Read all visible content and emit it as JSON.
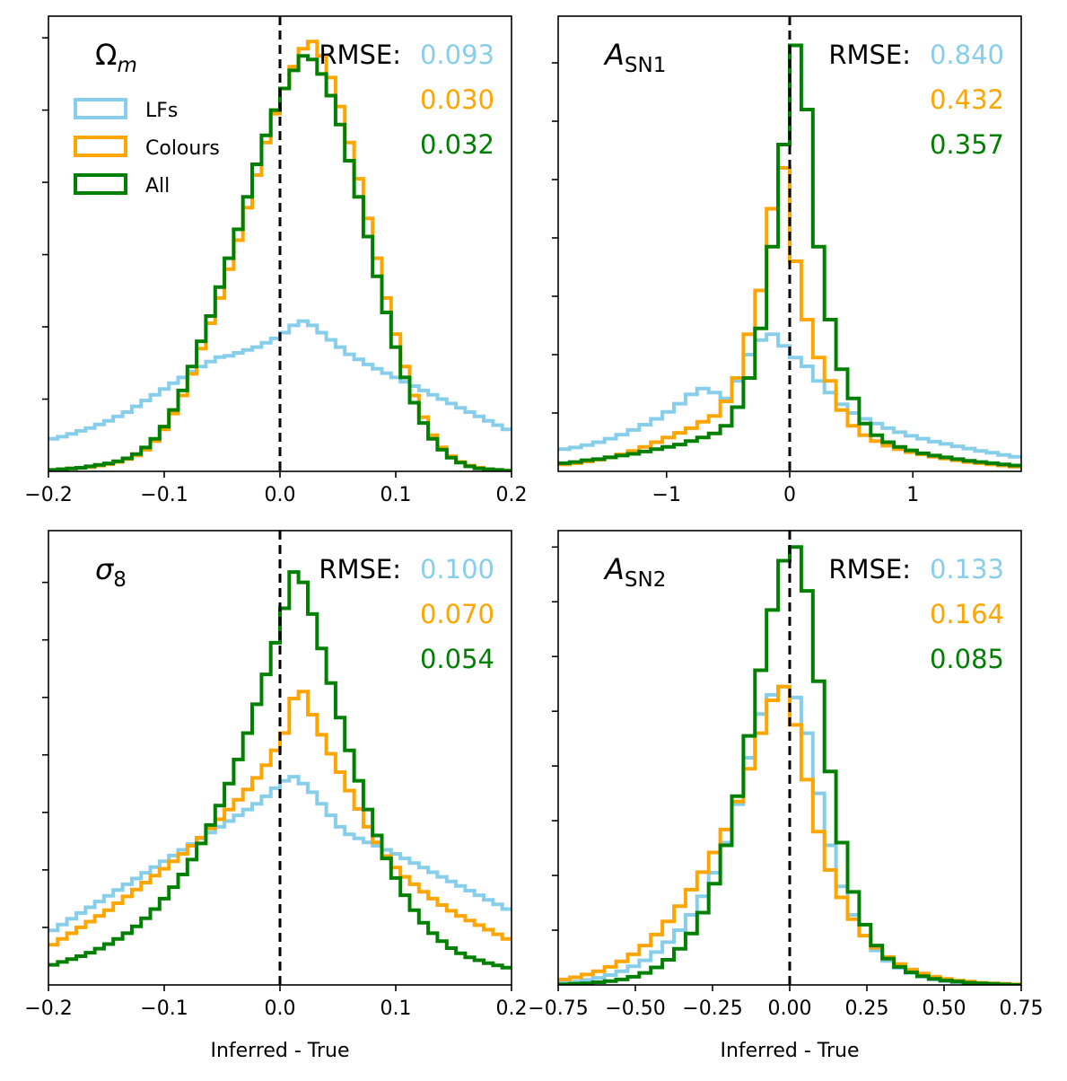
{
  "xlabel": "Inferred - True",
  "colors": {
    "lfs": "#87ceeb",
    "colours": "#ffa500",
    "all": "#008000",
    "truth_line": "#000000"
  },
  "legend": [
    {
      "name": "LFs",
      "color_key": "lfs"
    },
    {
      "name": "Colours",
      "color_key": "colours"
    },
    {
      "name": "All",
      "color_key": "all"
    }
  ],
  "chart_data": [
    {
      "type": "histogram-step",
      "param": {
        "main": "Ω",
        "italic_sub": "m",
        "roman_sub": ""
      },
      "rmse_label": "RMSE:",
      "rmse": [
        "0.093",
        "0.030",
        "0.032"
      ],
      "xlim": [
        -0.2,
        0.2
      ],
      "ylim": [
        0,
        6.3
      ],
      "xticks": [
        -0.2,
        -0.1,
        0.0,
        0.1,
        0.2
      ],
      "xticklabels": [
        "−0.2",
        "−0.1",
        "0.0",
        "0.1",
        "0.2"
      ],
      "yticks": [
        1,
        2,
        3,
        4,
        5,
        6
      ],
      "truth": 0.0,
      "series": [
        {
          "name": "LFs",
          "color_key": "lfs",
          "bin_start": -0.2,
          "bin_width": 0.008,
          "values": [
            0.45,
            0.48,
            0.52,
            0.56,
            0.6,
            0.65,
            0.7,
            0.76,
            0.82,
            0.9,
            0.98,
            1.06,
            1.14,
            1.22,
            1.3,
            1.38,
            1.45,
            1.52,
            1.58,
            1.6,
            1.64,
            1.68,
            1.72,
            1.78,
            1.84,
            1.92,
            2.02,
            2.08,
            2.02,
            1.92,
            1.82,
            1.72,
            1.62,
            1.55,
            1.48,
            1.42,
            1.36,
            1.3,
            1.24,
            1.18,
            1.12,
            1.06,
            1.0,
            0.94,
            0.88,
            0.82,
            0.76,
            0.7,
            0.64,
            0.58
          ]
        },
        {
          "name": "Colours",
          "color_key": "colours",
          "bin_start": -0.2,
          "bin_width": 0.008,
          "values": [
            0.02,
            0.03,
            0.04,
            0.05,
            0.06,
            0.08,
            0.1,
            0.13,
            0.17,
            0.22,
            0.3,
            0.42,
            0.58,
            0.8,
            1.05,
            1.35,
            1.7,
            2.05,
            2.4,
            2.8,
            3.2,
            3.65,
            4.1,
            4.55,
            4.95,
            5.3,
            5.6,
            5.85,
            5.95,
            5.75,
            5.45,
            5.05,
            4.55,
            4.05,
            3.5,
            2.95,
            2.4,
            1.9,
            1.45,
            1.05,
            0.75,
            0.5,
            0.33,
            0.21,
            0.13,
            0.08,
            0.05,
            0.03,
            0.02,
            0.01
          ]
        },
        {
          "name": "All",
          "color_key": "all",
          "bin_start": -0.2,
          "bin_width": 0.008,
          "values": [
            0.02,
            0.03,
            0.04,
            0.05,
            0.07,
            0.09,
            0.11,
            0.14,
            0.18,
            0.24,
            0.33,
            0.45,
            0.62,
            0.85,
            1.12,
            1.45,
            1.8,
            2.15,
            2.55,
            2.95,
            3.35,
            3.8,
            4.25,
            4.65,
            5.0,
            5.3,
            5.55,
            5.75,
            5.7,
            5.5,
            5.2,
            4.8,
            4.3,
            3.8,
            3.25,
            2.7,
            2.2,
            1.72,
            1.3,
            0.95,
            0.67,
            0.45,
            0.3,
            0.19,
            0.12,
            0.07,
            0.04,
            0.03,
            0.02,
            0.01
          ]
        }
      ]
    },
    {
      "type": "histogram-step",
      "param": {
        "main": "A",
        "italic_sub": "",
        "roman_sub": "SN1"
      },
      "rmse_label": "RMSE:",
      "rmse": [
        "0.840",
        "0.432",
        "0.357"
      ],
      "xlim": [
        -1.88,
        1.88
      ],
      "ylim": [
        0,
        7.8
      ],
      "xticks": [
        -1,
        0,
        1
      ],
      "xticklabels": [
        "−1",
        "0",
        "1"
      ],
      "yticks": [
        1,
        2,
        3,
        4,
        5,
        6,
        7
      ],
      "truth": 0.0,
      "series": [
        {
          "name": "LFs",
          "color_key": "lfs",
          "bin_start": -1.88,
          "bin_width": 0.094,
          "values": [
            0.38,
            0.41,
            0.45,
            0.5,
            0.56,
            0.63,
            0.71,
            0.8,
            0.9,
            1.02,
            1.16,
            1.32,
            1.42,
            1.35,
            1.25,
            1.55,
            2.0,
            2.25,
            2.35,
            2.15,
            1.95,
            1.8,
            1.55,
            1.35,
            1.15,
            1.0,
            0.9,
            0.82,
            0.74,
            0.67,
            0.61,
            0.56,
            0.51,
            0.47,
            0.43,
            0.39,
            0.35,
            0.32,
            0.28,
            0.25
          ]
        },
        {
          "name": "Colours",
          "color_key": "colours",
          "bin_start": -1.88,
          "bin_width": 0.094,
          "values": [
            0.12,
            0.14,
            0.17,
            0.2,
            0.24,
            0.29,
            0.35,
            0.42,
            0.5,
            0.58,
            0.66,
            0.74,
            0.85,
            0.95,
            1.2,
            1.6,
            2.35,
            3.1,
            4.5,
            5.2,
            3.6,
            2.6,
            1.95,
            1.55,
            1.05,
            0.78,
            0.62,
            0.52,
            0.44,
            0.38,
            0.33,
            0.29,
            0.25,
            0.22,
            0.19,
            0.16,
            0.14,
            0.12,
            0.1,
            0.08
          ]
        },
        {
          "name": "All",
          "color_key": "all",
          "bin_start": -1.88,
          "bin_width": 0.094,
          "values": [
            0.14,
            0.16,
            0.19,
            0.21,
            0.24,
            0.27,
            0.3,
            0.34,
            0.38,
            0.42,
            0.46,
            0.52,
            0.58,
            0.65,
            0.78,
            1.1,
            1.6,
            2.45,
            3.85,
            5.6,
            7.3,
            6.2,
            3.85,
            2.6,
            1.75,
            1.25,
            0.82,
            0.62,
            0.5,
            0.42,
            0.36,
            0.31,
            0.27,
            0.24,
            0.21,
            0.18,
            0.16,
            0.14,
            0.12,
            0.1
          ]
        }
      ]
    },
    {
      "type": "histogram-step",
      "param": {
        "main": "σ",
        "italic_sub": "",
        "roman_sub": "8"
      },
      "rmse_label": "RMSE:",
      "rmse": [
        "0.100",
        "0.070",
        "0.054"
      ],
      "xlim": [
        -0.2,
        0.2
      ],
      "ylim": [
        0,
        7.9
      ],
      "xticks": [
        -0.2,
        -0.1,
        0.0,
        0.1,
        0.2
      ],
      "xticklabels": [
        "−0.2",
        "−0.1",
        "0.0",
        "0.1",
        "0.2"
      ],
      "yticks": [
        1,
        2,
        3,
        4,
        5,
        6,
        7
      ],
      "truth": 0.0,
      "series": [
        {
          "name": "LFs",
          "color_key": "lfs",
          "bin_start": -0.2,
          "bin_width": 0.008,
          "values": [
            0.95,
            1.05,
            1.15,
            1.25,
            1.35,
            1.45,
            1.55,
            1.65,
            1.75,
            1.85,
            1.95,
            2.05,
            2.15,
            2.25,
            2.35,
            2.45,
            2.55,
            2.65,
            2.75,
            2.85,
            2.95,
            3.05,
            3.15,
            3.28,
            3.42,
            3.55,
            3.62,
            3.5,
            3.35,
            3.15,
            2.95,
            2.75,
            2.62,
            2.55,
            2.48,
            2.42,
            2.35,
            2.28,
            2.2,
            2.12,
            2.04,
            1.96,
            1.88,
            1.8,
            1.72,
            1.64,
            1.56,
            1.48,
            1.4,
            1.32
          ]
        },
        {
          "name": "Colours",
          "color_key": "colours",
          "bin_start": -0.2,
          "bin_width": 0.008,
          "values": [
            0.7,
            0.8,
            0.9,
            1.0,
            1.1,
            1.2,
            1.3,
            1.42,
            1.54,
            1.66,
            1.78,
            1.9,
            2.02,
            2.15,
            2.28,
            2.42,
            2.56,
            2.72,
            2.88,
            3.05,
            3.22,
            3.4,
            3.6,
            3.82,
            4.08,
            4.38,
            4.98,
            5.1,
            4.7,
            4.35,
            4.02,
            3.7,
            3.38,
            3.06,
            2.75,
            2.48,
            2.24,
            2.04,
            1.88,
            1.75,
            1.62,
            1.5,
            1.39,
            1.29,
            1.2,
            1.12,
            1.04,
            0.96,
            0.88,
            0.8
          ]
        },
        {
          "name": "All",
          "color_key": "all",
          "bin_start": -0.2,
          "bin_width": 0.008,
          "values": [
            0.35,
            0.4,
            0.45,
            0.5,
            0.56,
            0.63,
            0.71,
            0.8,
            0.9,
            1.02,
            1.16,
            1.32,
            1.5,
            1.7,
            1.92,
            2.18,
            2.46,
            2.78,
            3.12,
            3.5,
            3.92,
            4.38,
            4.88,
            5.4,
            5.95,
            6.55,
            7.18,
            7.0,
            6.45,
            5.85,
            5.25,
            4.65,
            4.08,
            3.55,
            3.05,
            2.6,
            2.2,
            1.86,
            1.56,
            1.3,
            1.08,
            0.9,
            0.76,
            0.64,
            0.55,
            0.48,
            0.43,
            0.38,
            0.34,
            0.3
          ]
        }
      ]
    },
    {
      "type": "histogram-step",
      "param": {
        "main": "A",
        "italic_sub": "",
        "roman_sub": "SN2"
      },
      "rmse_label": "RMSE:",
      "rmse": [
        "0.133",
        "0.164",
        "0.085"
      ],
      "xlim": [
        -0.75,
        0.75
      ],
      "ylim": [
        0,
        8.3
      ],
      "xticks": [
        -0.75,
        -0.5,
        -0.25,
        0.0,
        0.25,
        0.5,
        0.75
      ],
      "xticklabels": [
        "−0.75",
        "−0.50",
        "−0.25",
        "0.00",
        "0.25",
        "0.50",
        "0.75"
      ],
      "yticks": [
        1,
        2,
        3,
        4,
        5,
        6,
        7,
        8
      ],
      "truth": 0.0,
      "series": [
        {
          "name": "LFs",
          "color_key": "lfs",
          "bin_start": -0.75,
          "bin_width": 0.0375,
          "values": [
            0.04,
            0.06,
            0.09,
            0.13,
            0.18,
            0.25,
            0.34,
            0.45,
            0.6,
            0.78,
            1.0,
            1.28,
            1.62,
            2.05,
            2.6,
            3.3,
            4.15,
            4.95,
            5.3,
            5.45,
            5.25,
            4.6,
            3.5,
            2.55,
            1.8,
            1.28,
            0.9,
            0.63,
            0.44,
            0.31,
            0.22,
            0.15,
            0.1,
            0.07,
            0.05,
            0.03,
            0.02,
            0.01,
            0.01,
            0.0
          ]
        },
        {
          "name": "Colours",
          "color_key": "colours",
          "bin_start": -0.75,
          "bin_width": 0.0375,
          "values": [
            0.1,
            0.14,
            0.19,
            0.25,
            0.33,
            0.43,
            0.56,
            0.72,
            0.92,
            1.16,
            1.44,
            1.74,
            2.06,
            2.42,
            2.84,
            3.35,
            3.95,
            4.6,
            5.2,
            5.45,
            4.75,
            3.75,
            2.8,
            2.1,
            1.6,
            1.2,
            0.9,
            0.68,
            0.51,
            0.38,
            0.28,
            0.21,
            0.15,
            0.11,
            0.08,
            0.06,
            0.04,
            0.03,
            0.02,
            0.01
          ]
        },
        {
          "name": "All",
          "color_key": "all",
          "bin_start": -0.75,
          "bin_width": 0.0375,
          "values": [
            0.01,
            0.02,
            0.03,
            0.05,
            0.07,
            0.1,
            0.15,
            0.22,
            0.32,
            0.46,
            0.66,
            0.94,
            1.32,
            1.85,
            2.55,
            3.45,
            4.55,
            5.75,
            6.85,
            7.75,
            8.0,
            7.2,
            5.55,
            3.9,
            2.6,
            1.7,
            1.1,
            0.72,
            0.48,
            0.33,
            0.23,
            0.16,
            0.11,
            0.08,
            0.06,
            0.04,
            0.03,
            0.02,
            0.01,
            0.0
          ]
        }
      ]
    }
  ]
}
